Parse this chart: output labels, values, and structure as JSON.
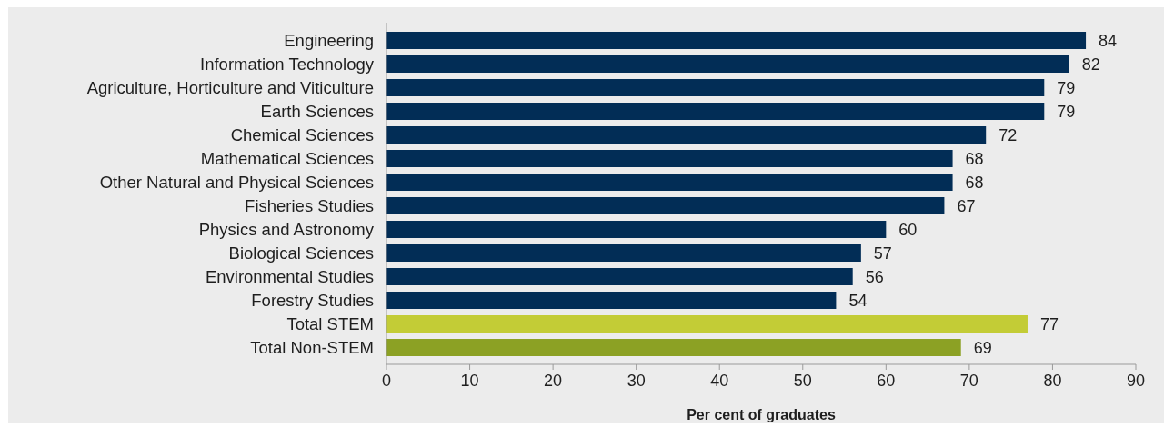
{
  "chart_data": {
    "type": "bar",
    "orientation": "horizontal",
    "xlabel": "Per cent of graduates",
    "categories": [
      "Engineering",
      "Information Technology",
      "Agriculture, Horticulture and Viticulture",
      "Earth Sciences",
      "Chemical Sciences",
      "Mathematical Sciences",
      "Other Natural and Physical Sciences",
      "Fisheries Studies",
      "Physics and Astronomy",
      "Biological Sciences",
      "Environmental Studies",
      "Forestry Studies",
      "Total STEM",
      "Total Non-STEM"
    ],
    "values": [
      84,
      82,
      79,
      79,
      72,
      68,
      68,
      67,
      60,
      57,
      56,
      54,
      77,
      69
    ],
    "colors": [
      "#022d56",
      "#022d56",
      "#022d56",
      "#022d56",
      "#022d56",
      "#022d56",
      "#022d56",
      "#022d56",
      "#022d56",
      "#022d56",
      "#022d56",
      "#022d56",
      "#c3cc36",
      "#8ca124"
    ],
    "xlim": [
      0,
      90
    ],
    "xticks": [
      0,
      10,
      20,
      30,
      40,
      50,
      60,
      70,
      80,
      90
    ],
    "data_labels": true
  }
}
